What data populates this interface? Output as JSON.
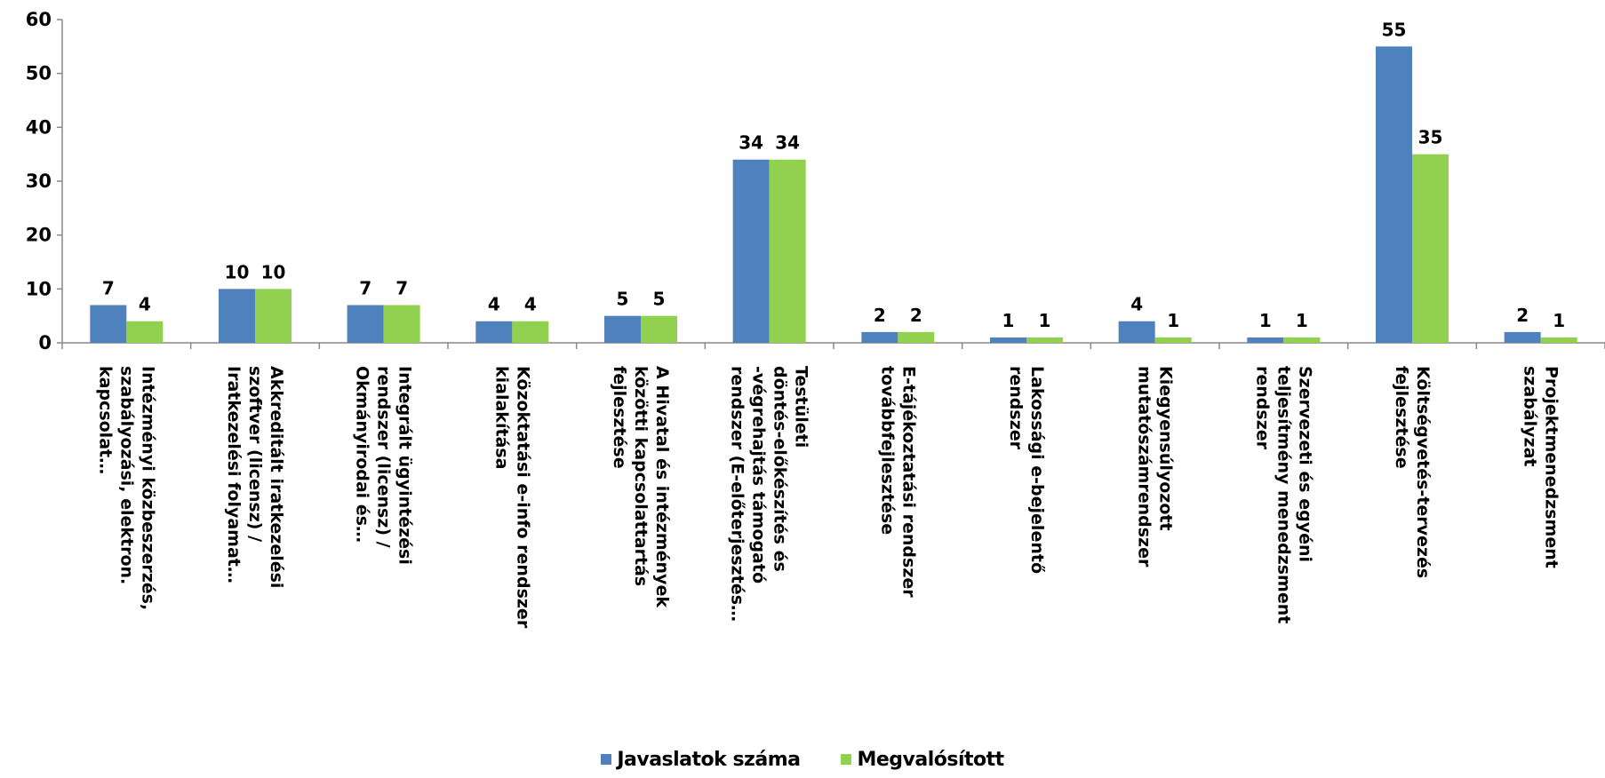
{
  "chart_data": {
    "type": "bar",
    "title": "",
    "xlabel": "",
    "ylabel": "",
    "ylim": [
      0,
      60
    ],
    "yticks": [
      0,
      10,
      20,
      30,
      40,
      50,
      60
    ],
    "grid": false,
    "legend_position": "bottom",
    "categories": [
      "Intézményi közbeszerzés, szabályozási, elektron. kapcsolat…",
      "Akkreditált iratkezelési szoftver (licensz) / Iratkezelési folyamat…",
      "Integrált ügyintézési rendszer (licensz) / Okmányirodai és…",
      "Közoktatási e-info rendszer kialakítása",
      "A Hivatal és intézmények közötti kapcsolattartás fejlesztése",
      "Testületi döntés-előkészítés és -végrehajtás támogató rendszer (E-előterjesztés…",
      "E-tájékoztatási rendszer továbbfejlesztése",
      "Lakossági e-bejelentő rendszer",
      "Kiegyensúlyozott mutatószámrendszer",
      "Szervezeti és egyéni teljesítmény menedzsment rendszer",
      "Költségvetés-tervezés fejlesztése",
      "Projektmenedzsment szabályzat"
    ],
    "series": [
      {
        "name": "Javaslatok száma",
        "color": "#4F81BD",
        "values": [
          7,
          10,
          7,
          4,
          5,
          34,
          2,
          1,
          4,
          1,
          55,
          2
        ]
      },
      {
        "name": "Megvalósított",
        "color": "#92D050",
        "values": [
          4,
          10,
          7,
          4,
          5,
          34,
          2,
          1,
          1,
          1,
          35,
          1
        ]
      }
    ]
  }
}
